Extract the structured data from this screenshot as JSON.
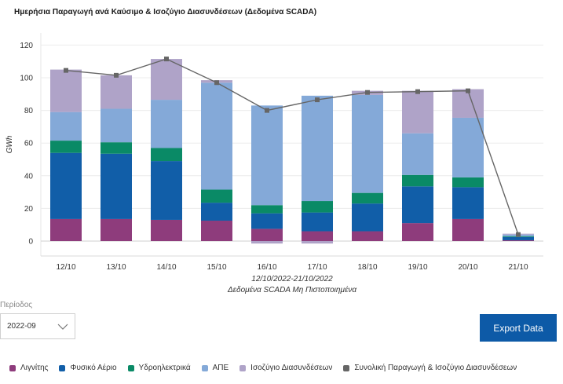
{
  "chart_data": {
    "type": "bar",
    "stacked": true,
    "title": "Ημερήσια Παραγωγή ανά Καύσιμο & Ισοζύγιο Διασυνδέσεων (Δεδομένα SCADA)",
    "ylabel": "GWh",
    "xlabel_line1": "12/10/2022-21/10/2022",
    "xlabel_line2": "Δεδομένα SCADA Μη Πιστοποιημένα",
    "ylim": [
      -5,
      125
    ],
    "yticks": [
      0,
      20,
      40,
      60,
      80,
      100,
      120
    ],
    "grid": true,
    "legend_position": "bottom",
    "categories": [
      "12/10",
      "13/10",
      "14/10",
      "15/10",
      "16/10",
      "17/10",
      "18/10",
      "19/10",
      "20/10",
      "21/10"
    ],
    "series": [
      {
        "name": "Λιγνίτης",
        "color": "#8e3c7c",
        "values": [
          13.5,
          13.5,
          13,
          12.5,
          7.5,
          6,
          6,
          11,
          13.5,
          0.5
        ]
      },
      {
        "name": "Φυσικό Αέριο",
        "color": "#115ea8",
        "values": [
          40.5,
          40,
          36,
          11,
          9.5,
          11.5,
          17,
          22.5,
          19.5,
          2
        ]
      },
      {
        "name": "Υδροηλεκτρικά",
        "color": "#0a8a66",
        "values": [
          7.5,
          7,
          8,
          8,
          5,
          7,
          6.5,
          7,
          6,
          0.5
        ]
      },
      {
        "name": "ΑΠΕ",
        "color": "#84a9d8",
        "values": [
          17.5,
          20.5,
          29.5,
          65.5,
          61,
          64.5,
          60,
          25.5,
          36.5,
          1
        ]
      },
      {
        "name": "Ισοζύγιο Διασυνδέσεων",
        "color": "#afa3c8",
        "values": [
          26,
          20.5,
          25,
          1.5,
          -1.5,
          -1.5,
          2.5,
          26,
          17.5,
          0.5
        ]
      }
    ],
    "line_series": {
      "name": "Συνολική Παραγωγή & Ισοζύγιο Διασυνδέσεων",
      "color": "#666666",
      "values": [
        104.5,
        101.5,
        111.5,
        97,
        80,
        86.5,
        91,
        91.5,
        92,
        4
      ]
    }
  },
  "controls": {
    "period_label": "Περίοδος",
    "period_value": "2022-09",
    "export_label": "Export Data"
  }
}
